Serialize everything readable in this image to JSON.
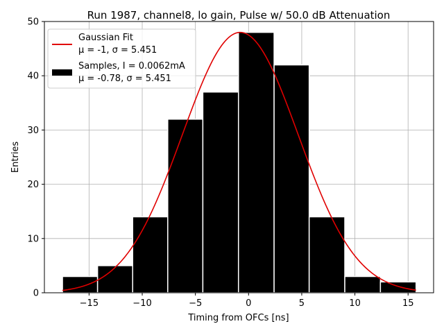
{
  "chart_data": {
    "type": "bar",
    "title": "Run 1987, channel8, lo gain, Pulse w/ 50.0 dB Attenuation",
    "xlabel": "Timing from OFCs [ns]",
    "ylabel": "Entries",
    "xlim": [
      -19.2,
      17.4
    ],
    "ylim": [
      0,
      50
    ],
    "xticks": [
      -15,
      -10,
      -5,
      0,
      5,
      10,
      15
    ],
    "xtick_labels": [
      "−15",
      "−10",
      "−5",
      "0",
      "5",
      "10",
      "15"
    ],
    "yticks": [
      0,
      10,
      20,
      30,
      40,
      50
    ],
    "ytick_labels": [
      "0",
      "10",
      "20",
      "30",
      "40",
      "50"
    ],
    "grid": true,
    "histogram": {
      "name": "Samples",
      "color": "#000000",
      "bins": [
        {
          "left": -17.5,
          "right": -14.2,
          "count": 3
        },
        {
          "left": -14.2,
          "right": -10.9,
          "count": 5
        },
        {
          "left": -10.9,
          "right": -7.6,
          "count": 14
        },
        {
          "left": -7.6,
          "right": -4.3,
          "count": 32
        },
        {
          "left": -4.3,
          "right": -0.95,
          "count": 37
        },
        {
          "left": -0.95,
          "right": 2.4,
          "count": 48
        },
        {
          "left": 2.4,
          "right": 5.7,
          "count": 42
        },
        {
          "left": 5.7,
          "right": 9.05,
          "count": 14
        },
        {
          "left": 9.05,
          "right": 12.4,
          "count": 3
        },
        {
          "left": 12.4,
          "right": 15.75,
          "count": 2
        }
      ]
    },
    "fit": {
      "name": "Gaussian Fit",
      "color": "#e00000",
      "mu": -0.78,
      "sigma": 5.451,
      "amplitude": 48,
      "x_range": [
        -17.5,
        15.75
      ]
    },
    "legend": {
      "position": "top-left",
      "entries": [
        {
          "kind": "line",
          "color": "#e00000",
          "line1": "Gaussian Fit",
          "line2_mu": "μ = -1, ",
          "line2_sigma": "σ = 5.451"
        },
        {
          "kind": "patch",
          "color": "#000000",
          "line1": "Samples, I = 0.0062mA",
          "line2_mu": "μ = -0.78, ",
          "line2_sigma": "σ = 5.451"
        }
      ]
    }
  }
}
